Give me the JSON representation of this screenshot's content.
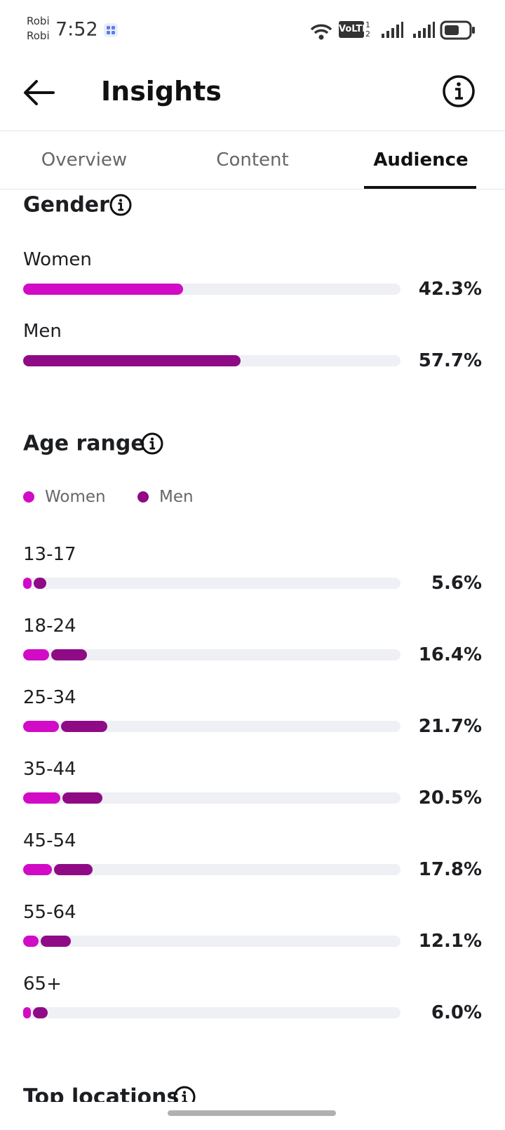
{
  "status_bar": {
    "carrier": [
      "Robi",
      "Robi"
    ],
    "time": "7:52",
    "volte": "VoLTE",
    "sim_slots": [
      "1",
      "2"
    ]
  },
  "header": {
    "title": "Insights"
  },
  "tabs": {
    "items": [
      "Overview",
      "Content",
      "Audience"
    ],
    "selected": 2
  },
  "xlim": [
    0,
    100
  ],
  "gender": {
    "title": "Gender",
    "rows": [
      {
        "label": "Women",
        "value": 42.3,
        "value_label": "42.3%",
        "color": "#d10bc6"
      },
      {
        "label": "Men",
        "value": 57.7,
        "value_label": "57.7%",
        "color": "#8f0b86"
      }
    ]
  },
  "age_range": {
    "title": "Age range",
    "legend": [
      {
        "name": "Women",
        "color": "#d10bc6"
      },
      {
        "name": "Men",
        "color": "#8f0b86"
      }
    ],
    "rows": [
      {
        "label": "13-17",
        "women": 2.2,
        "men": 3.4,
        "value_label": "5.6%"
      },
      {
        "label": "18-24",
        "women": 6.8,
        "men": 9.6,
        "value_label": "16.4%"
      },
      {
        "label": "25-34",
        "women": 9.4,
        "men": 12.3,
        "value_label": "21.7%"
      },
      {
        "label": "35-44",
        "women": 9.9,
        "men": 10.6,
        "value_label": "20.5%"
      },
      {
        "label": "45-54",
        "women": 7.6,
        "men": 10.2,
        "value_label": "17.8%"
      },
      {
        "label": "55-64",
        "women": 4.1,
        "men": 8.0,
        "value_label": "12.1%"
      },
      {
        "label": "65+",
        "women": 2.0,
        "men": 4.0,
        "value_label": "6.0%"
      }
    ]
  },
  "top_locations": {
    "title": "Top locations"
  }
}
